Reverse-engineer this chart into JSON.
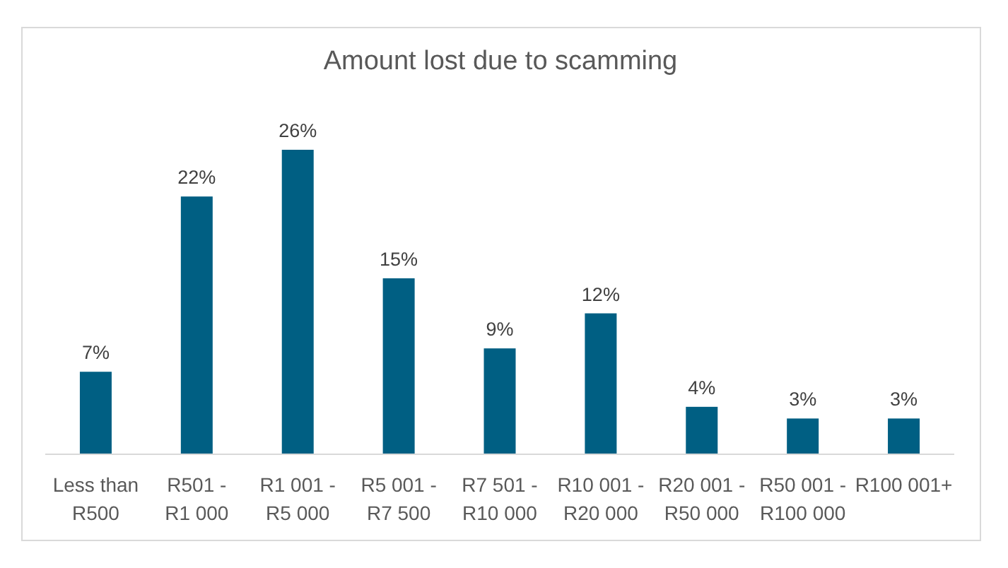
{
  "chart_data": {
    "type": "bar",
    "title": "Amount lost due to scamming",
    "categories": [
      "Less than R500",
      "R501 - R1 000",
      "R1 001 - R5 000",
      "R5 001 - R7 500",
      "R7 501 - R10 000",
      "R10 001 - R20 000",
      "R20 001 - R50 000",
      "R50 001 - R100 000",
      "R100 001+"
    ],
    "values": [
      7,
      22,
      26,
      15,
      9,
      12,
      4,
      3,
      3
    ],
    "value_labels": [
      "7%",
      "22%",
      "26%",
      "15%",
      "9%",
      "12%",
      "4%",
      "3%",
      "3%"
    ],
    "color": "#005f83",
    "tick_labels": "x"
  }
}
